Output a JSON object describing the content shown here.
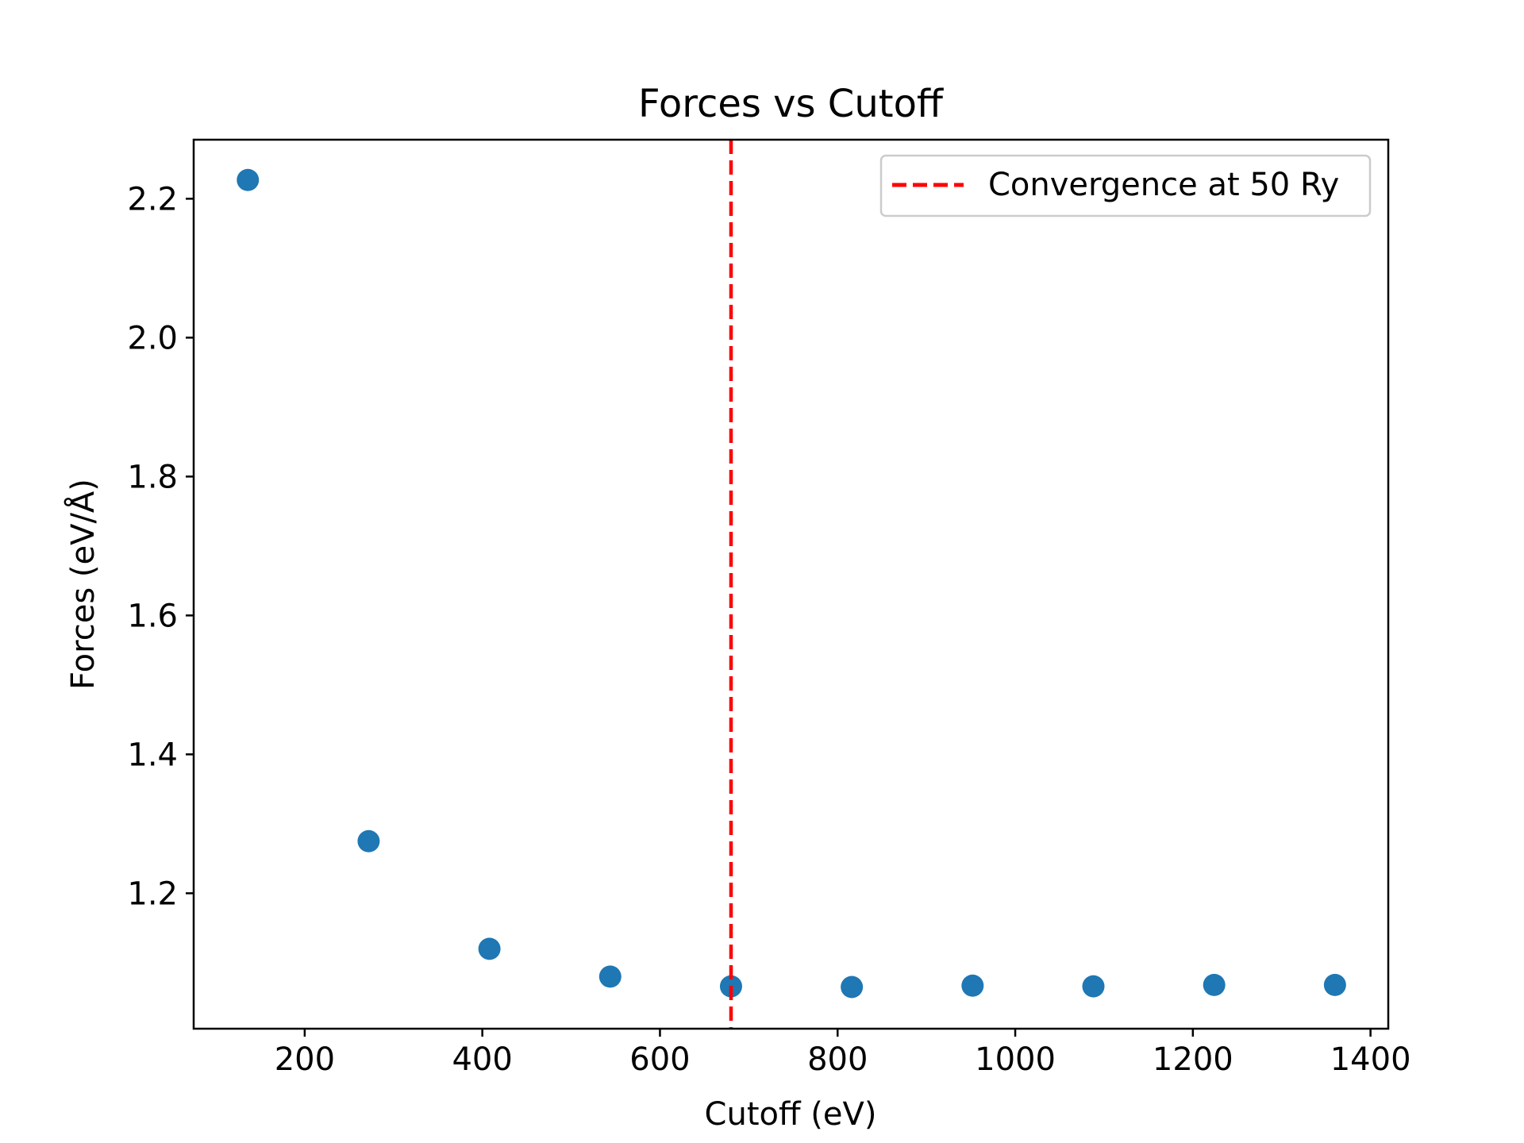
{
  "chart_data": {
    "type": "scatter",
    "title": "Forces vs Cutoff",
    "xlabel": "Cutoff (eV)",
    "ylabel": "Forces (eV/Å)",
    "xlim": [
      75,
      1420
    ],
    "ylim": [
      1.005,
      2.285
    ],
    "xticks": [
      200,
      400,
      600,
      800,
      1000,
      1200,
      1400
    ],
    "yticks": [
      1.2,
      1.4,
      1.6,
      1.8,
      2.0,
      2.2
    ],
    "grid": false,
    "legend_position": "top-right",
    "series": [
      {
        "color": "#1f77b4",
        "points": [
          {
            "x": 136,
            "y": 2.227
          },
          {
            "x": 272,
            "y": 1.275
          },
          {
            "x": 408,
            "y": 1.12
          },
          {
            "x": 544,
            "y": 1.08
          },
          {
            "x": 680,
            "y": 1.066
          },
          {
            "x": 816,
            "y": 1.065
          },
          {
            "x": 952,
            "y": 1.067
          },
          {
            "x": 1088,
            "y": 1.066
          },
          {
            "x": 1224,
            "y": 1.068
          },
          {
            "x": 1360,
            "y": 1.068
          }
        ]
      }
    ],
    "reference_lines": [
      {
        "orientation": "vertical",
        "x": 680,
        "style": "dashed",
        "color": "#ff0000",
        "label": "Convergence at 50 Ry"
      }
    ]
  }
}
